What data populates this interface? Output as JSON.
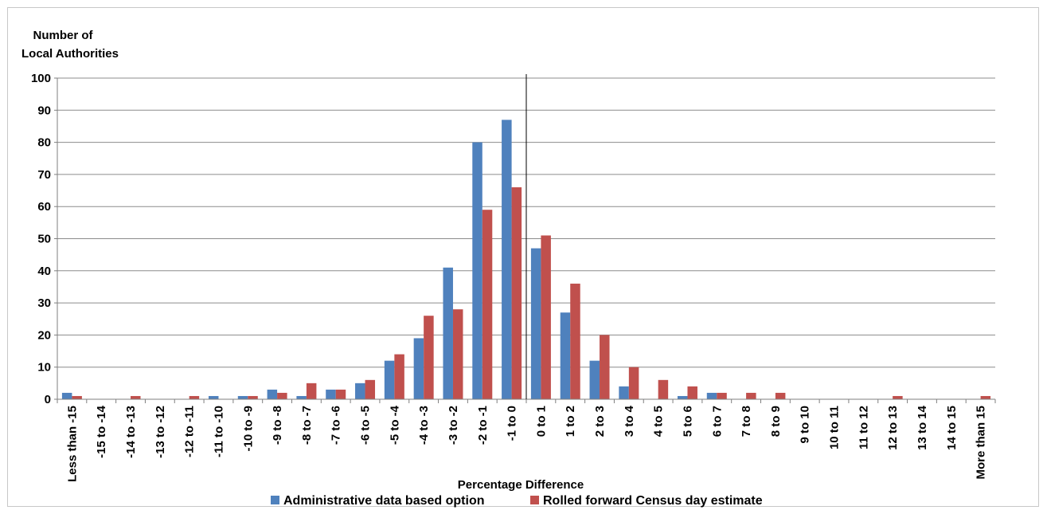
{
  "chart_data": {
    "type": "bar",
    "title": "",
    "ylabel_lines": [
      "Number of",
      "Local Authorities"
    ],
    "xlabel": "Percentage Difference",
    "ylim": [
      0,
      100
    ],
    "ytick_step": 10,
    "grid": "horizontal",
    "legend_position": "bottom",
    "categories": [
      "Less than -15",
      "-15 to -14",
      "-14 to -13",
      "-13 to -12",
      "-12 to -11",
      "-11 to -10",
      "-10 to -9",
      "-9 to -8",
      "-8 to -7",
      "-7 to -6",
      "-6 to -5",
      "-5 to -4",
      "-4 to -3",
      "-3 to -2",
      "-2 to -1",
      "-1 to 0",
      "0 to 1",
      "1 to 2",
      "2 to 3",
      "3 to 4",
      "4 to 5",
      "5 to 6",
      "6 to 7",
      "7 to 8",
      "8 to 9",
      "9 to 10",
      "10 to 11",
      "11 to 12",
      "12 to 13",
      "13 to 14",
      "14 to 15",
      "More than 15"
    ],
    "series": [
      {
        "name": "Administrative data based option",
        "color": "#4f81bd",
        "values": [
          2,
          0,
          0,
          0,
          0,
          1,
          1,
          3,
          1,
          3,
          5,
          12,
          19,
          41,
          80,
          87,
          47,
          27,
          12,
          4,
          0,
          1,
          2,
          0,
          0,
          0,
          0,
          0,
          0,
          0,
          0,
          0
        ]
      },
      {
        "name": "Rolled forward Census day estimate",
        "color": "#c0504d",
        "values": [
          1,
          0,
          1,
          0,
          1,
          0,
          1,
          2,
          5,
          3,
          6,
          14,
          26,
          28,
          59,
          66,
          51,
          36,
          20,
          10,
          6,
          4,
          2,
          2,
          2,
          0,
          0,
          0,
          1,
          0,
          0,
          1
        ]
      }
    ],
    "reference_line_after_category": "-1 to 0"
  }
}
